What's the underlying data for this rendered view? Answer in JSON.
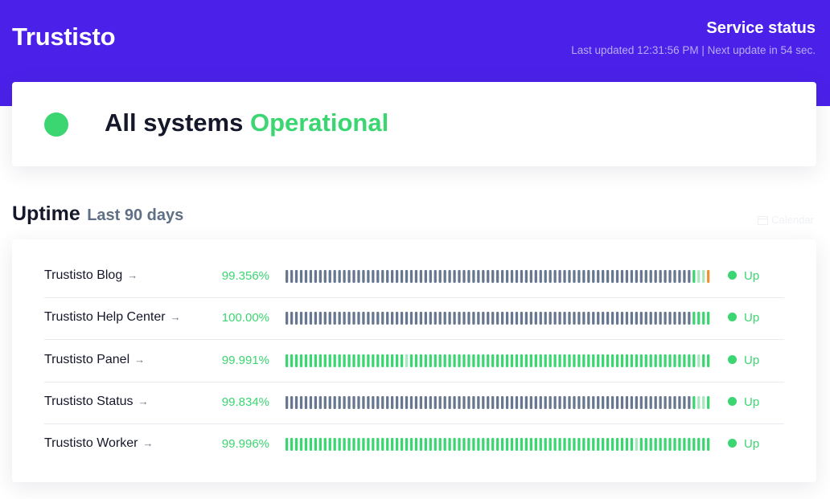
{
  "header": {
    "brand": "Trustisto",
    "title": "Service status",
    "updated": "Last updated 12:31:56 PM | Next update in 54 sec."
  },
  "overall": {
    "prefix": "All systems",
    "state": "Operational",
    "color": "#3bd671"
  },
  "uptime": {
    "title": "Uptime",
    "range": "Last 90 days",
    "calendar_label": "Calendar"
  },
  "colors": {
    "no_data": "#687790",
    "up": "#3bd671",
    "partial": "#a9e8be",
    "incident": "#f29030"
  },
  "monitors": [
    {
      "name": "Trustisto Blog",
      "percent": "99.356%",
      "status": "Up",
      "days": "nnnnnnnnnnnnnnnnnnnnnnnnnnnnnnnnnnnnnnnnnnnnnnnnnnnnnnnnnnnnnnnnnnnnnnnnnnnnnnnnnnnnnuppi"
    },
    {
      "name": "Trustisto Help Center",
      "percent": "100.00%",
      "status": "Up",
      "days": "nnnnnnnnnnnnnnnnnnnnnnnnnnnnnnnnnnnnnnnnnnnnnnnnnnnnnnnnnnnnnnnnnnnnnnnnnnnnnnnnnnnnnuuuu"
    },
    {
      "name": "Trustisto Panel",
      "percent": "99.991%",
      "status": "Up",
      "days": "uuuuuuuuuuuuuuuuuuuuuuuuupuuuuuuuuuuuuuuuuuuuuuuuuuuuuuuuuuuuuuuuuuuuuuuuuuuuuuuuuuuuupuu"
    },
    {
      "name": "Trustisto Status",
      "percent": "99.834%",
      "status": "Up",
      "days": "nnnnnnnnnnnnnnnnnnnnnnnnnnnnnnnnnnnnnnnnnnnnnnnnnnnnnnnnnnnnnnnnnnnnnnnnnnnnnnnnnnnnnuppu"
    },
    {
      "name": "Trustisto Worker",
      "percent": "99.996%",
      "status": "Up",
      "days": "uuuuuuuuuuuuuuuuuuuuuuuuuuuuuuuuuuuuuuuuuuuuuuuuuuuuuuuuuuuuuuuuuuuuuuuuupuuuuuuuuuuuuuuu"
    }
  ]
}
